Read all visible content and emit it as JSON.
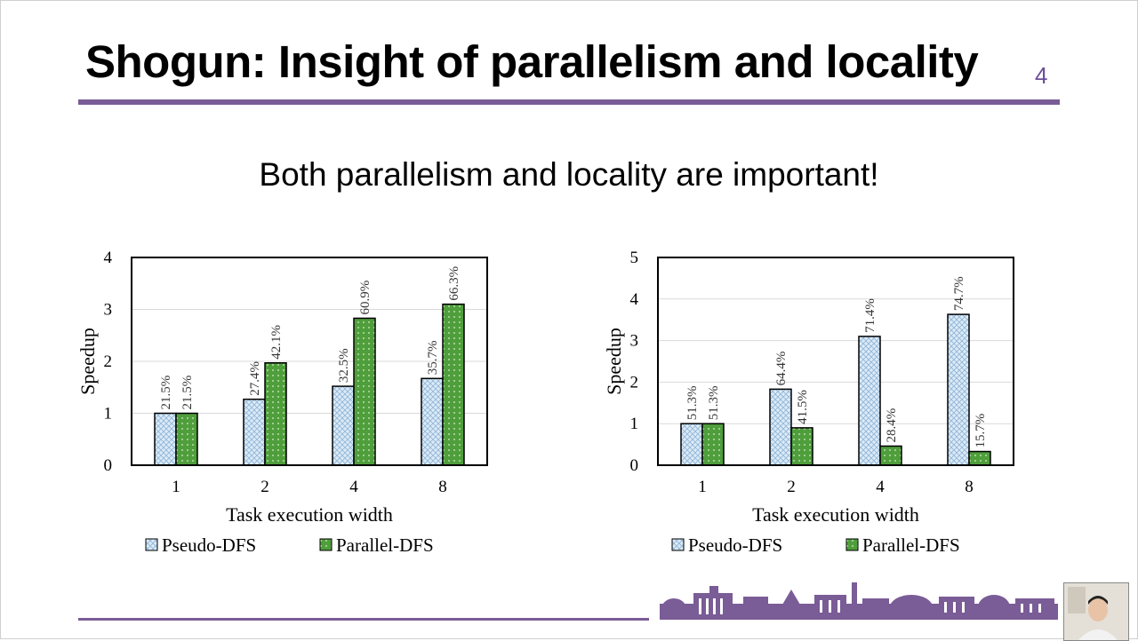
{
  "slide": {
    "title": "Shogun: Insight of parallelism and locality",
    "page_number": "4",
    "subtitle": "Both parallelism and locality are important!",
    "accent_color": "#7a5c96"
  },
  "chart_data": [
    {
      "type": "bar",
      "categories": [
        "1",
        "2",
        "4",
        "8"
      ],
      "xlabel": "Task execution width",
      "ylabel": "Speedup",
      "ylim": [
        0,
        4
      ],
      "yticks": [
        0,
        1,
        2,
        3,
        4
      ],
      "grid": true,
      "legend_position": "bottom",
      "series": [
        {
          "name": "Pseudo-DFS",
          "values": [
            1.0,
            1.27,
            1.52,
            1.67
          ],
          "labels": [
            "21.5%",
            "27.4%",
            "32.5%",
            "35.7%"
          ],
          "pattern": "crosshatch",
          "color": "#dbeaf7"
        },
        {
          "name": "Parallel-DFS",
          "values": [
            1.0,
            1.97,
            2.83,
            3.1
          ],
          "labels": [
            "21.5%",
            "42.1%",
            "60.9%",
            "66.3%"
          ],
          "pattern": "dots",
          "color": "#5aa545"
        }
      ]
    },
    {
      "type": "bar",
      "categories": [
        "1",
        "2",
        "4",
        "8"
      ],
      "xlabel": "Task execution width",
      "ylabel": "Speedup",
      "ylim": [
        0,
        5
      ],
      "yticks": [
        0,
        1,
        2,
        3,
        4,
        5
      ],
      "grid": true,
      "legend_position": "bottom",
      "series": [
        {
          "name": "Pseudo-DFS",
          "values": [
            1.0,
            1.83,
            3.1,
            3.63
          ],
          "labels": [
            "51.3%",
            "64.4%",
            "71.4%",
            "74.7%"
          ],
          "pattern": "crosshatch",
          "color": "#dbeaf7"
        },
        {
          "name": "Parallel-DFS",
          "values": [
            1.0,
            0.9,
            0.46,
            0.33
          ],
          "labels": [
            "51.3%",
            "41.5%",
            "28.4%",
            "15.7%"
          ],
          "pattern": "dots",
          "color": "#5aa545"
        }
      ]
    }
  ]
}
